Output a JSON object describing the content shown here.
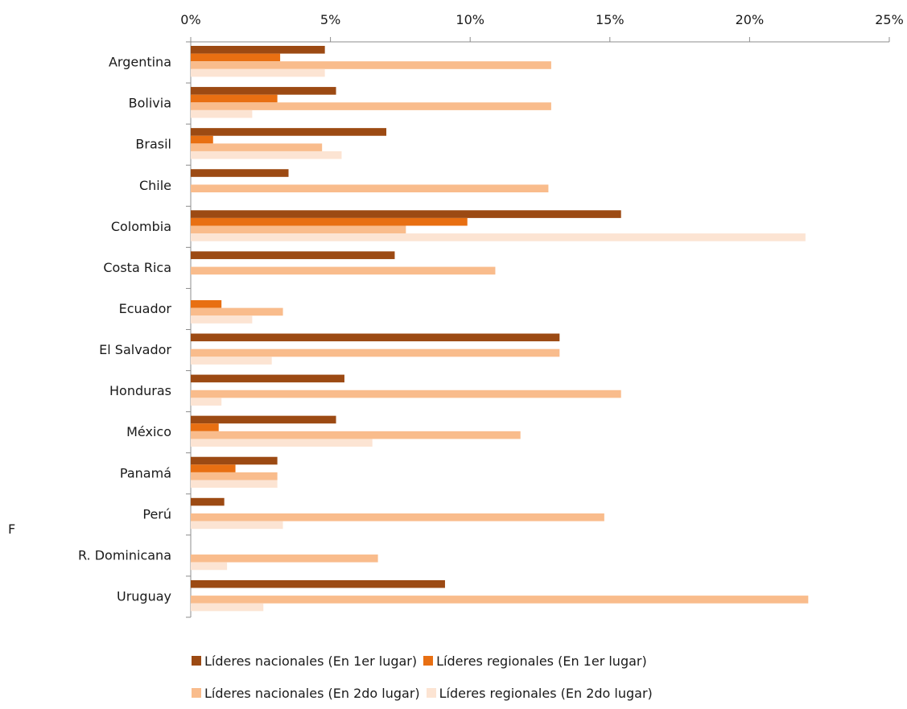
{
  "side_letter": "F",
  "chart_data": {
    "type": "bar",
    "orientation": "horizontal",
    "title": "",
    "xlim": [
      0,
      25
    ],
    "x_ticks": [
      0,
      5,
      10,
      15,
      20,
      25
    ],
    "x_tick_labels": [
      "0%",
      "5%",
      "10%",
      "15%",
      "20%",
      "25%"
    ],
    "x_unit": "%",
    "grid": false,
    "legend_position": "bottom",
    "categories": [
      "Argentina",
      "Bolivia",
      "Brasil",
      "Chile",
      "Colombia",
      "Costa Rica",
      "Ecuador",
      "El Salvador",
      "Honduras",
      "México",
      "Panamá",
      "Perú",
      "R. Dominicana",
      "Uruguay"
    ],
    "series": [
      {
        "name": "Líderes nacionales (En 1er lugar)",
        "color": "#9c4a13",
        "values": [
          4.8,
          5.2,
          7.0,
          3.5,
          15.4,
          7.3,
          0.0,
          13.2,
          5.5,
          5.2,
          3.1,
          1.2,
          0.0,
          9.1
        ]
      },
      {
        "name": "Líderes regionales (En 1er lugar)",
        "color": "#e86f12",
        "values": [
          3.2,
          3.1,
          0.8,
          0.0,
          9.9,
          0.0,
          1.1,
          0.0,
          0.0,
          1.0,
          1.6,
          0.0,
          0.0,
          0.0
        ]
      },
      {
        "name": "Líderes nacionales (En 2do lugar)",
        "color": "#f9bc8c",
        "values": [
          12.9,
          12.9,
          4.7,
          12.8,
          7.7,
          10.9,
          3.3,
          13.2,
          15.4,
          11.8,
          3.1,
          14.8,
          6.7,
          22.1
        ]
      },
      {
        "name": "Líderes regionales (En 2do lugar)",
        "color": "#fce4d3",
        "values": [
          4.8,
          2.2,
          5.4,
          0.0,
          22.0,
          0.0,
          2.2,
          2.9,
          1.1,
          6.5,
          3.1,
          3.3,
          1.3,
          2.6
        ]
      }
    ]
  },
  "legend_rows": [
    [
      0,
      1
    ],
    [
      2,
      3
    ]
  ]
}
